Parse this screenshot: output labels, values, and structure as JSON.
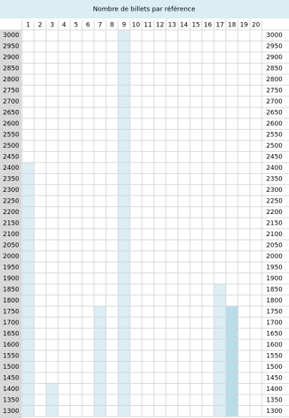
{
  "chart_data": {
    "type": "bar",
    "title": "Nombre de billets par référence",
    "categories": [
      "1",
      "2",
      "3",
      "4",
      "5",
      "6",
      "7",
      "8",
      "9",
      "10",
      "11",
      "12",
      "13",
      "14",
      "15",
      "16",
      "17",
      "18",
      "19",
      "20"
    ],
    "values": [
      2400,
      null,
      1400,
      null,
      null,
      null,
      1750,
      null,
      3000,
      null,
      null,
      null,
      null,
      null,
      null,
      null,
      1850,
      1750,
      null,
      null
    ],
    "colors": [
      "#daeef3",
      "#daeef3",
      "#daeef3",
      "#daeef3",
      "#daeef3",
      "#daeef3",
      "#daeef3",
      "#daeef3",
      "#daeef3",
      "#daeef3",
      "#daeef3",
      "#daeef3",
      "#daeef3",
      "#daeef3",
      "#daeef3",
      "#daeef3",
      "#daeef3",
      "#b7dde8",
      "#daeef3",
      "#daeef3"
    ],
    "ylim": [
      1300,
      3000
    ],
    "yticks": [
      3000,
      2950,
      2900,
      2850,
      2800,
      2750,
      2700,
      2650,
      2600,
      2550,
      2500,
      2450,
      2400,
      2350,
      2300,
      2250,
      2200,
      2150,
      2100,
      2050,
      2000,
      1950,
      1900,
      1850,
      1800,
      1750,
      1700,
      1650,
      1600,
      1550,
      1500,
      1450,
      1400,
      1350,
      1300
    ],
    "grid": true
  }
}
